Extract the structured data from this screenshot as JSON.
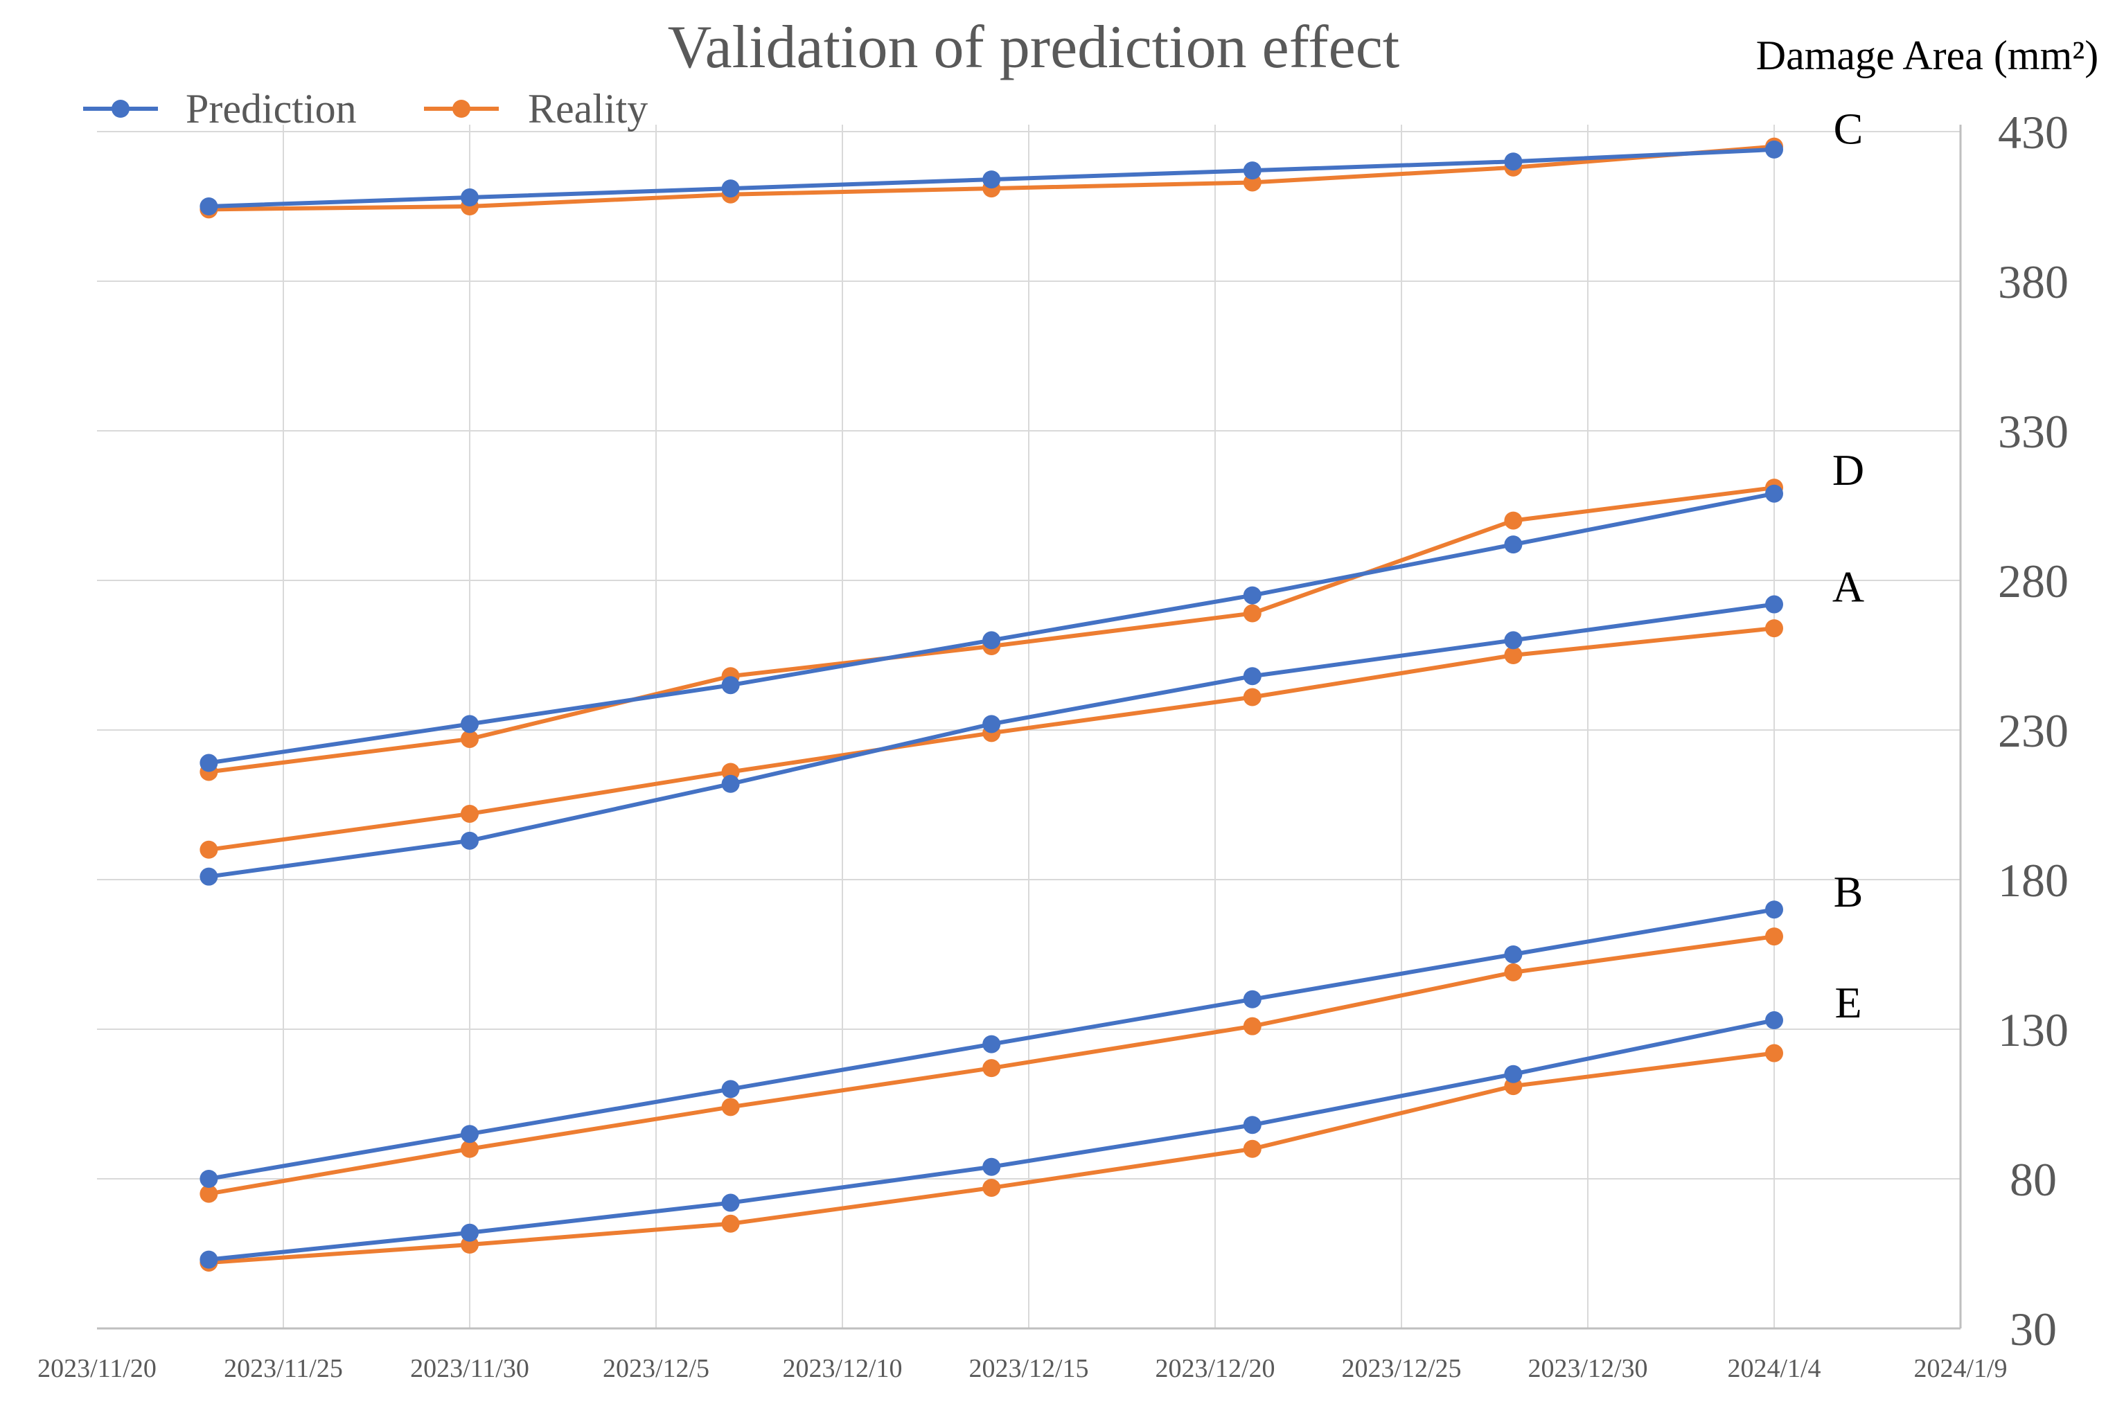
{
  "chart_data": {
    "type": "line",
    "title": "Validation of prediction effect",
    "xlabel": "",
    "ylabel": "Damage Area (mm²)",
    "y_axis_side": "right",
    "ylim": [
      30,
      430
    ],
    "yticks": [
      30,
      80,
      130,
      180,
      230,
      280,
      330,
      380,
      430
    ],
    "x_tick_labels": [
      "2023/11/20",
      "2023/11/25",
      "2023/11/30",
      "2023/12/5",
      "2023/12/10",
      "2023/12/15",
      "2023/12/20",
      "2023/12/25",
      "2023/12/30",
      "2024/1/4",
      "2024/1/9"
    ],
    "x_tick_days": [
      0,
      5,
      10,
      15,
      20,
      25,
      30,
      35,
      40,
      45,
      50
    ],
    "xlim_days": [
      0,
      50
    ],
    "x_dates": [
      "2023/11/23",
      "2023/11/30",
      "2023/12/7",
      "2023/12/14",
      "2023/12/21",
      "2023/12/28",
      "2024/1/4"
    ],
    "x_days": [
      3,
      10,
      17,
      24,
      31,
      38,
      45
    ],
    "grid": true,
    "legend": {
      "position": "top-left",
      "entries": [
        {
          "name": "Prediction",
          "color": "#4472c4"
        },
        {
          "name": "Reality",
          "color": "#ed7d31"
        }
      ]
    },
    "groups": [
      {
        "label": "C",
        "prediction": [
          405,
          408,
          411,
          414,
          417,
          420,
          424
        ],
        "reality": [
          404,
          405,
          409,
          411,
          413,
          418,
          425
        ]
      },
      {
        "label": "D",
        "prediction": [
          219,
          232,
          245,
          260,
          275,
          292,
          309
        ],
        "reality": [
          216,
          227,
          248,
          258,
          269,
          300,
          311
        ]
      },
      {
        "label": "A",
        "prediction": [
          181,
          193,
          212,
          232,
          248,
          260,
          272
        ],
        "reality": [
          190,
          202,
          216,
          229,
          241,
          255,
          264
        ]
      },
      {
        "label": "B",
        "prediction": [
          80,
          95,
          110,
          125,
          140,
          155,
          170
        ],
        "reality": [
          75,
          90,
          104,
          117,
          131,
          149,
          161
        ]
      },
      {
        "label": "E",
        "prediction": [
          53,
          62,
          72,
          84,
          98,
          115,
          133
        ],
        "reality": [
          52,
          58,
          65,
          77,
          90,
          111,
          122
        ]
      }
    ]
  }
}
